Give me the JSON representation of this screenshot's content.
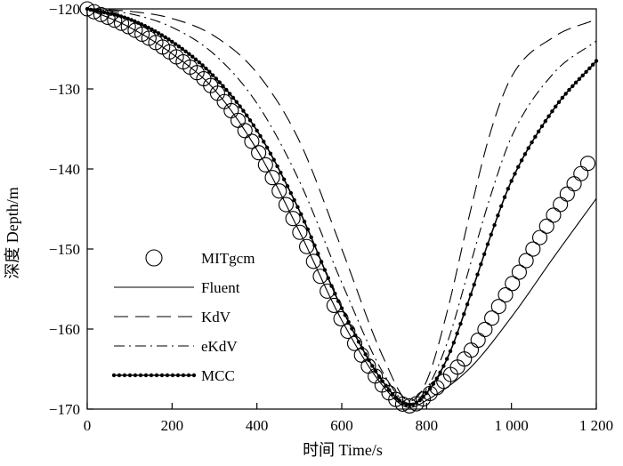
{
  "chart_data": {
    "type": "line",
    "xlabel": "时间 Time/s",
    "ylabel": "深度 Depth/m",
    "xlim": [
      0,
      1200
    ],
    "ylim": [
      -170,
      -120
    ],
    "xticks": [
      0,
      200,
      400,
      600,
      800,
      1000,
      1200
    ],
    "xtick_labels": [
      "0",
      "200",
      "400",
      "600",
      "800",
      "1 000",
      "1 200"
    ],
    "yticks": [
      -170,
      -160,
      -150,
      -140,
      -130,
      -120
    ],
    "ytick_labels": [
      "−170",
      "−160",
      "−150",
      "−140",
      "−130",
      "−120"
    ],
    "grid": false,
    "legend_position": "bottom-left",
    "series": [
      {
        "name": "MITgcm",
        "style": "open-circle",
        "x": [
          0,
          100,
          200,
          300,
          400,
          500,
          600,
          700,
          760,
          800,
          900,
          1000,
          1100,
          1180
        ],
        "y": [
          -120,
          -122.3,
          -125.6,
          -130.1,
          -137.6,
          -147.8,
          -158.9,
          -167.3,
          -169.6,
          -168.4,
          -163.0,
          -154.5,
          -145.7,
          -139.3
        ]
      },
      {
        "name": "Fluent",
        "style": "solid",
        "x": [
          0,
          100,
          200,
          300,
          400,
          500,
          600,
          700,
          760,
          800,
          900,
          1000,
          1100,
          1200
        ],
        "y": [
          -120,
          -122.3,
          -125.6,
          -130.1,
          -137.6,
          -147.8,
          -158.9,
          -167.3,
          -169.8,
          -168.9,
          -165.0,
          -158.5,
          -151.0,
          -143.7
        ]
      },
      {
        "name": "KdV",
        "style": "long-dash",
        "x": [
          0,
          100,
          200,
          300,
          400,
          500,
          600,
          700,
          760,
          800,
          850,
          900,
          950,
          1000,
          1100,
          1200
        ],
        "y": [
          -120,
          -120.3,
          -121.2,
          -123.4,
          -128.0,
          -136.5,
          -150.0,
          -163.8,
          -169.0,
          -166.5,
          -157.5,
          -146.0,
          -135.5,
          -128.5,
          -123.5,
          -121.3
        ]
      },
      {
        "name": "eKdV",
        "style": "dash-dot",
        "x": [
          0,
          100,
          200,
          300,
          400,
          500,
          600,
          700,
          760,
          800,
          850,
          900,
          950,
          1000,
          1100,
          1200
        ],
        "y": [
          -120,
          -120.6,
          -122.3,
          -125.7,
          -131.8,
          -141.5,
          -154.2,
          -165.7,
          -169.3,
          -167.5,
          -161.5,
          -152.5,
          -143.5,
          -136.0,
          -128.0,
          -124.0
        ]
      },
      {
        "name": "MCC",
        "style": "dotted-line",
        "x": [
          0,
          100,
          200,
          300,
          400,
          500,
          600,
          700,
          760,
          800,
          850,
          900,
          950,
          1000,
          1100,
          1200
        ],
        "y": [
          -120,
          -121.3,
          -124.1,
          -128.5,
          -135.2,
          -145.2,
          -157.4,
          -166.8,
          -169.5,
          -168.0,
          -163.5,
          -156.3,
          -148.5,
          -141.5,
          -132.5,
          -126.5
        ]
      }
    ]
  }
}
